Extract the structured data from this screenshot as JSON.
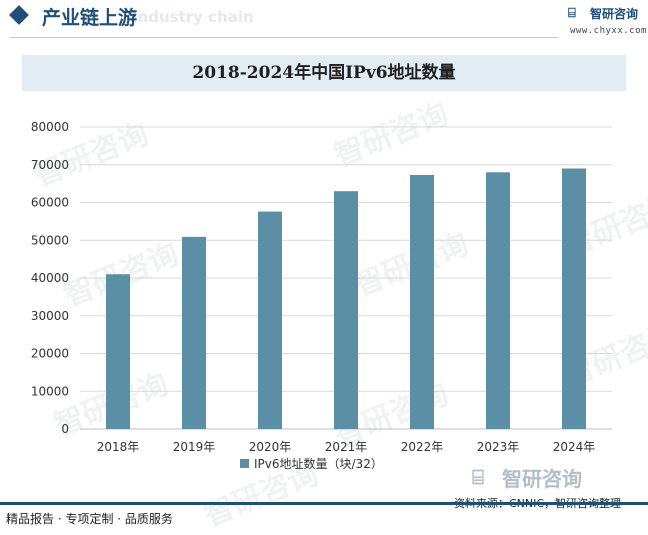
{
  "header": {
    "section_title": "产业链上游",
    "ghost_text": "Industry chain",
    "brand": "智研咨询",
    "url": "www.chyxx.com"
  },
  "watermark": {
    "text": "智研咨询"
  },
  "footer": {
    "left_text": "精品报告 · 专项定制 · 品质服务",
    "source": "资料来源：CNNIC，智研咨询整理",
    "brand": "智研咨询"
  },
  "colors": {
    "bar": "#5b8fa6",
    "header_accent": "#1f4e79",
    "title_bg": "#e2ecf5",
    "grid": "#d9d9d9"
  },
  "chart_data": {
    "type": "bar",
    "title": "2018-2024年中国IPv6地址数量",
    "categories": [
      "2018年",
      "2019年",
      "2020年",
      "2021年",
      "2022年",
      "2023年",
      "2024年"
    ],
    "series": [
      {
        "name": "IPv6地址数量（块/32）",
        "values": [
          41000,
          50900,
          57600,
          63000,
          67300,
          68000,
          69000
        ]
      }
    ],
    "yticks": [
      "0",
      "10000",
      "20000",
      "30000",
      "40000",
      "50000",
      "60000",
      "70000",
      "80000"
    ],
    "ylim": [
      0,
      80000
    ],
    "grid": true,
    "legend_position": "bottom-center"
  }
}
